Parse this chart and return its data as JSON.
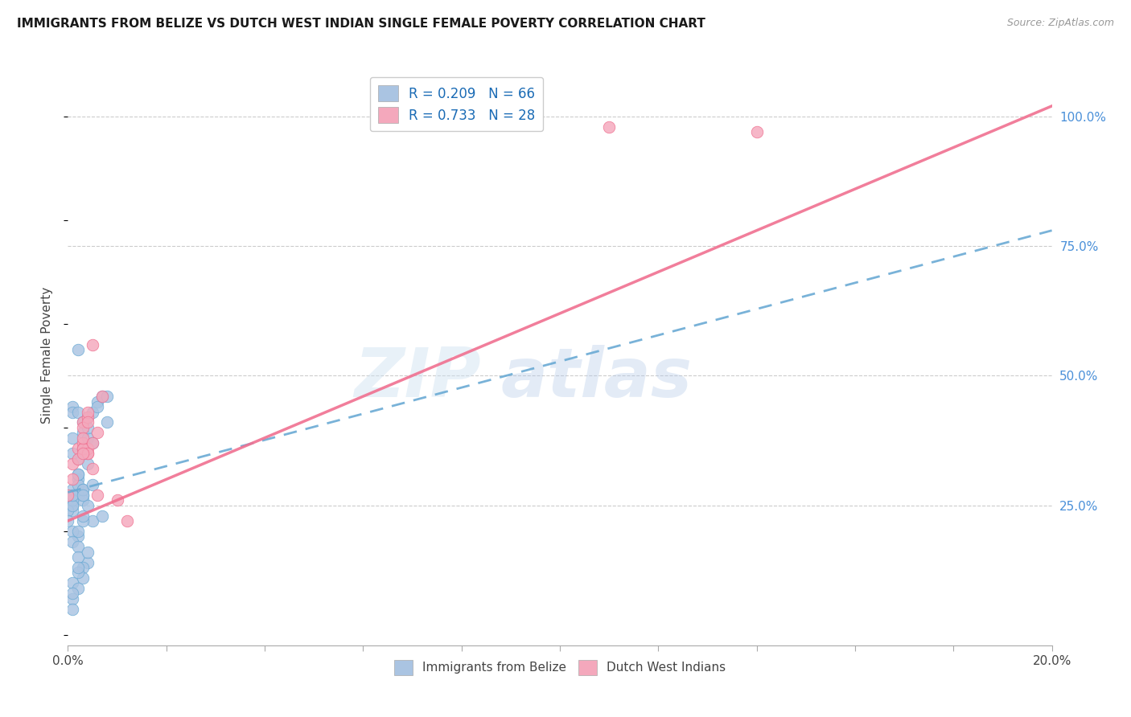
{
  "title": "IMMIGRANTS FROM BELIZE VS DUTCH WEST INDIAN SINGLE FEMALE POVERTY CORRELATION CHART",
  "source": "Source: ZipAtlas.com",
  "ylabel": "Single Female Poverty",
  "legend_label_1": "Immigrants from Belize",
  "legend_label_2": "Dutch West Indians",
  "R1": 0.209,
  "N1": 66,
  "R2": 0.733,
  "N2": 28,
  "color1": "#aac4e2",
  "color2": "#f4a8bc",
  "line1_color": "#6aaad4",
  "line2_color": "#f07090",
  "watermark": "ZIPatlas",
  "xlim": [
    0.0,
    0.2
  ],
  "ylim": [
    -0.02,
    1.1
  ],
  "trendline1_x0": 0.0,
  "trendline1_y0": 0.275,
  "trendline1_x1": 0.2,
  "trendline1_y1": 0.78,
  "trendline2_x0": 0.0,
  "trendline2_y0": 0.22,
  "trendline2_x1": 0.2,
  "trendline2_y1": 1.02,
  "belize_x": [
    0.0,
    0.0,
    0.0,
    0.001,
    0.001,
    0.001,
    0.001,
    0.001,
    0.001,
    0.002,
    0.002,
    0.002,
    0.002,
    0.002,
    0.003,
    0.003,
    0.003,
    0.003,
    0.003,
    0.003,
    0.004,
    0.004,
    0.004,
    0.004,
    0.005,
    0.005,
    0.005,
    0.006,
    0.006,
    0.007,
    0.007,
    0.008,
    0.008,
    0.0,
    0.0,
    0.001,
    0.001,
    0.002,
    0.002,
    0.003,
    0.003,
    0.004,
    0.001,
    0.001,
    0.002,
    0.002,
    0.003,
    0.003,
    0.001,
    0.002,
    0.001,
    0.002,
    0.003,
    0.001,
    0.004,
    0.002,
    0.001,
    0.003,
    0.002,
    0.004,
    0.005,
    0.001,
    0.002,
    0.003,
    0.001,
    0.002
  ],
  "belize_y": [
    0.27,
    0.26,
    0.25,
    0.38,
    0.44,
    0.43,
    0.28,
    0.25,
    0.24,
    0.43,
    0.3,
    0.29,
    0.27,
    0.19,
    0.41,
    0.39,
    0.27,
    0.26,
    0.35,
    0.28,
    0.38,
    0.42,
    0.4,
    0.14,
    0.43,
    0.37,
    0.22,
    0.45,
    0.44,
    0.46,
    0.23,
    0.41,
    0.46,
    0.24,
    0.22,
    0.26,
    0.25,
    0.34,
    0.31,
    0.36,
    0.28,
    0.33,
    0.2,
    0.18,
    0.17,
    0.15,
    0.13,
    0.11,
    0.1,
    0.12,
    0.07,
    0.09,
    0.22,
    0.05,
    0.16,
    0.55,
    0.35,
    0.23,
    0.2,
    0.25,
    0.29,
    0.27,
    0.31,
    0.27,
    0.08,
    0.13
  ],
  "dutch_x": [
    0.0,
    0.001,
    0.002,
    0.002,
    0.003,
    0.003,
    0.003,
    0.003,
    0.004,
    0.004,
    0.004,
    0.004,
    0.005,
    0.005,
    0.001,
    0.003,
    0.004,
    0.006,
    0.007,
    0.003,
    0.004,
    0.01,
    0.012,
    0.005,
    0.003,
    0.006,
    0.11,
    0.14
  ],
  "dutch_y": [
    0.27,
    0.33,
    0.36,
    0.34,
    0.37,
    0.41,
    0.4,
    0.36,
    0.42,
    0.35,
    0.43,
    0.36,
    0.56,
    0.32,
    0.3,
    0.36,
    0.35,
    0.39,
    0.46,
    0.38,
    0.41,
    0.26,
    0.22,
    0.37,
    0.35,
    0.27,
    0.98,
    0.97
  ]
}
